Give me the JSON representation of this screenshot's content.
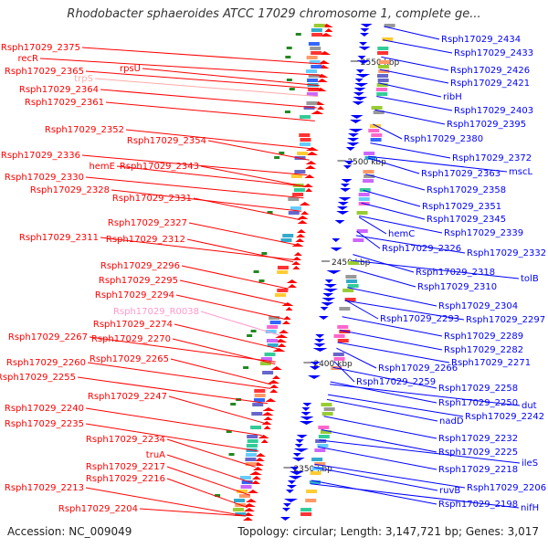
{
  "title": "Rhodobacter sphaeroides ATCC 17029 chromosome 1, complete ge...",
  "footer": {
    "accession": "Accession: NC_009049",
    "summary": "Topology: circular; Length: 3,147,721 bp; Genes: 3,017"
  },
  "colors": {
    "forward_strand": "#ff0000",
    "reverse_strand": "#0000ff",
    "rna": "#ff99cc",
    "backbone": "#999999"
  },
  "scale_ticks": [
    "2550 kbp",
    "2500 kbp",
    "2450 kbp",
    "2400 kbp",
    "2350 kbp"
  ],
  "left_labels": [
    "Rsph17029_2375",
    "recR",
    "rpsU",
    "Rsph17029_2365",
    "trpS",
    "Rsph17029_2364",
    "Rsph17029_2361",
    "Rsph17029_2352",
    "Rsph17029_2354",
    "Rsph17029_2336",
    "hemE",
    "Rsph17029_2343",
    "Rsph17029_2330",
    "Rsph17029_2328",
    "Rsph17029_2331",
    "Rsph17029_2327",
    "Rsph17029_2311",
    "Rsph17029_2312",
    "Rsph17029_2296",
    "Rsph17029_2295",
    "Rsph17029_2294",
    "Rsph17029_R0038",
    "Rsph17029_2274",
    "Rsph17029_2267",
    "Rsph17029_2270",
    "Rsph17029_2265",
    "Rsph17029_2260",
    "Rsph17029_2255",
    "Rsph17029_2247",
    "Rsph17029_2240",
    "Rsph17029_2235",
    "Rsph17029_2234",
    "truA",
    "Rsph17029_2217",
    "Rsph17029_2216",
    "Rsph17029_2213",
    "Rsph17029_2204"
  ],
  "right_labels": [
    "Rsph17029_2434",
    "Rsph17029_2433",
    "Rsph17029_2426",
    "Rsph17029_2421",
    "ribH",
    "Rsph17029_2403",
    "Rsph17029_2395",
    "Rsph17029_2380",
    "Rsph17029_2372",
    "mscL",
    "Rsph17029_2363",
    "Rsph17029_2358",
    "Rsph17029_2351",
    "Rsph17029_2345",
    "hemC",
    "Rsph17029_2339",
    "Rsph17029_2326",
    "Rsph17029_2332",
    "Rsph17029_2318",
    "tolB",
    "Rsph17029_2310",
    "Rsph17029_2304",
    "Rsph17029_2293",
    "Rsph17029_2297",
    "Rsph17029_2289",
    "Rsph17029_2282",
    "Rsph17029_2266",
    "Rsph17029_2271",
    "Rsph17029_2259",
    "Rsph17029_2258",
    "Rsph17029_2250",
    "dut",
    "nadD",
    "Rsph17029_2242",
    "Rsph17029_2232",
    "Rsph17029_2225",
    "Rsph17029_2218",
    "ileS",
    "ruvB",
    "Rsph17029_2206",
    "Rsph17029_2198",
    "nifH"
  ]
}
